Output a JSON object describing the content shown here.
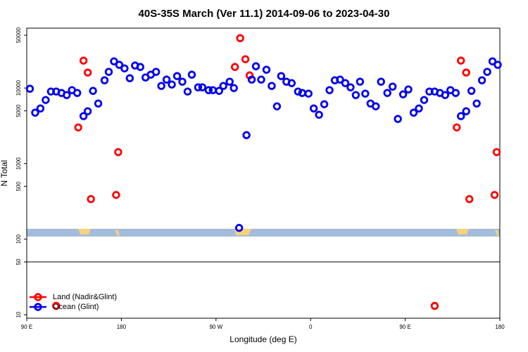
{
  "chart_data": {
    "type": "scatter",
    "title": "40S-35S March (Ver 11.1)   2014-09-06 to 2023-04-30",
    "x_label": "Longitude (deg E)",
    "y_label": "N Total",
    "log_y": true,
    "xlim": [
      90,
      540
    ],
    "xticks": [
      {
        "value": 90,
        "label": "90 E"
      },
      {
        "value": 180,
        "label": "180"
      },
      {
        "value": 270,
        "label": "90 W"
      },
      {
        "value": 360,
        "label": "0"
      },
      {
        "value": 450,
        "label": "90 E"
      },
      {
        "value": 540,
        "label": "180"
      }
    ],
    "ylim": [
      9,
      62000
    ],
    "yticks": [
      10,
      50,
      100,
      500,
      1000,
      5000,
      10000,
      50000
    ],
    "reference_line": 50,
    "legend": "bottom-left",
    "series": [
      {
        "name": "Land (Nadir&Glint)",
        "color": "#ff0000",
        "x": [
          139,
          144,
          148,
          151,
          175,
          177,
          288,
          293,
          298,
          302,
          118,
          478,
          499,
          503,
          508,
          511,
          535,
          537
        ],
        "values": [
          3010,
          23060,
          16020,
          339,
          385,
          1420,
          19000,
          45700,
          24050,
          14700,
          13.1,
          13.1,
          3010,
          23060,
          16020,
          339,
          385,
          1420
        ]
      },
      {
        "name": "Ocean (Glint)",
        "color": "#0000ee",
        "x": [
          93,
          98,
          103,
          108,
          113,
          118,
          123,
          128,
          133,
          138,
          144,
          148,
          153,
          158,
          164,
          168,
          173,
          178,
          183,
          188,
          193,
          198,
          203,
          208,
          213,
          218,
          223,
          228,
          233,
          238,
          243,
          247,
          253,
          257,
          263,
          267,
          273,
          277,
          283,
          287,
          292,
          299,
          304,
          308,
          313,
          318,
          323,
          328,
          332,
          337,
          342,
          348,
          352,
          358,
          363,
          368,
          373,
          378,
          383,
          388,
          393,
          398,
          403,
          407,
          412,
          417,
          422,
          427,
          433,
          438,
          443,
          448,
          453,
          458,
          463,
          468,
          473,
          478,
          483,
          488,
          493,
          498,
          503,
          508,
          513,
          518,
          523,
          528,
          533,
          538
        ],
        "values": [
          9790,
          4720,
          5370,
          6950,
          8990,
          8990,
          8610,
          8070,
          9380,
          8610,
          4250,
          4930,
          9180,
          6240,
          12660,
          16370,
          22550,
          20300,
          18200,
          13490,
          19850,
          19000,
          13790,
          15020,
          16370,
          10660,
          12930,
          11130,
          14390,
          12130,
          8990,
          15020,
          10220,
          10220,
          9380,
          9380,
          9180,
          10660,
          12130,
          10000,
          141,
          2380,
          12930,
          19420,
          12930,
          17460,
          10660,
          5730,
          14390,
          12130,
          11620,
          8990,
          8610,
          8430,
          5370,
          4430,
          6110,
          9380,
          12660,
          12930,
          11620,
          10220,
          8070,
          12130,
          8430,
          6240,
          5730,
          12130,
          8610,
          10440,
          3900,
          8250,
          9580,
          4720,
          5370,
          6950,
          8990,
          8990,
          8610,
          8070,
          9380,
          8610,
          4250,
          4930,
          9180,
          6240,
          12660,
          16370,
          22550,
          20300
        ]
      }
    ]
  }
}
